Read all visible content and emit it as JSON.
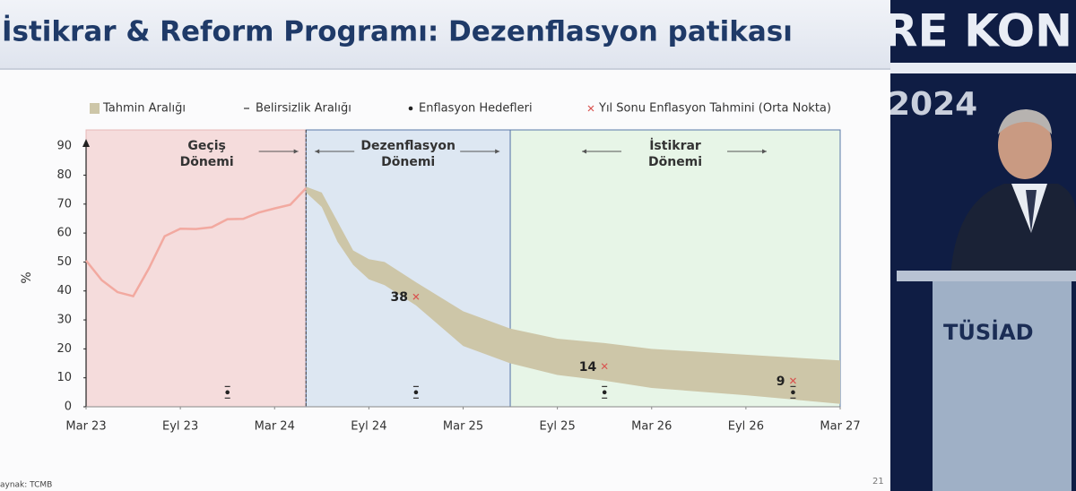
{
  "chart_data": {
    "type": "line",
    "title": "İstikrar & Reform Programı: Dezenflasyon patikası",
    "ylabel": "%",
    "xlim": [
      "2023-03",
      "2027-03"
    ],
    "xticks": [
      {
        "value": "2023-03",
        "label": "Mar 23"
      },
      {
        "value": "2023-09",
        "label": "Eyl 23"
      },
      {
        "value": "2024-03",
        "label": "Mar 24"
      },
      {
        "value": "2024-09",
        "label": "Eyl 24"
      },
      {
        "value": "2025-03",
        "label": "Mar 25"
      },
      {
        "value": "2025-09",
        "label": "Eyl 25"
      },
      {
        "value": "2026-03",
        "label": "Mar 26"
      },
      {
        "value": "2026-09",
        "label": "Eyl 26"
      },
      {
        "value": "2027-03",
        "label": "Mar 27"
      }
    ],
    "ylim": [
      0,
      95
    ],
    "yticks": [
      0,
      10,
      20,
      30,
      40,
      50,
      60,
      70,
      80,
      90
    ],
    "regions": [
      {
        "label": [
          "Geçiş",
          "Dönemi"
        ],
        "start": "2023-03",
        "end": "2024-05",
        "color": "#f5dcdc"
      },
      {
        "label": [
          "Dezenflasyon",
          "Dönemi"
        ],
        "start": "2024-05",
        "end": "2025-06",
        "color": "#dde7f2"
      },
      {
        "label": [
          "İstikrar",
          "Dönemi"
        ],
        "start": "2025-06",
        "end": "2027-03",
        "color": "#e7f5e7"
      }
    ],
    "line": {
      "color": "#f2a9a0",
      "x": [
        "2023-03",
        "2023-04",
        "2023-05",
        "2023-06",
        "2023-07",
        "2023-08",
        "2023-09",
        "2023-10",
        "2023-11",
        "2023-12",
        "2024-01",
        "2024-02",
        "2024-03",
        "2024-04",
        "2024-05"
      ],
      "values": [
        50.5,
        43.7,
        39.6,
        38.2,
        47.8,
        58.9,
        61.5,
        61.4,
        62.0,
        64.8,
        64.9,
        67.1,
        68.5,
        69.8,
        75.5
      ]
    },
    "band": {
      "name": "Tahmin Aralığı",
      "color": "#cdc6a8",
      "x": [
        "2024-05",
        "2024-06",
        "2024-07",
        "2024-08",
        "2024-09",
        "2024-10",
        "2024-12",
        "2025-03",
        "2025-06",
        "2025-09",
        "2025-12",
        "2026-03",
        "2026-09",
        "2027-03"
      ],
      "upper": [
        76,
        74,
        64,
        54,
        51,
        50,
        43,
        33,
        27,
        23.5,
        22,
        20,
        18,
        16
      ],
      "lower": [
        74,
        69,
        57,
        49,
        44,
        42,
        35,
        21,
        15,
        11,
        9,
        6.5,
        4,
        1
      ]
    },
    "uncertainty": {
      "name": "Belirsizlik Aralığı",
      "x": [
        "2023-12",
        "2024-12",
        "2025-12",
        "2026-12"
      ],
      "low": [
        3,
        3,
        3,
        3
      ],
      "high": [
        7,
        7,
        7,
        7
      ]
    },
    "targets": {
      "name": "Enflasyon Hedefleri",
      "x": [
        "2023-12",
        "2024-12",
        "2025-12",
        "2026-12"
      ],
      "values": [
        5,
        5,
        5,
        5
      ]
    },
    "estimates": {
      "name": "Yıl Sonu Enflasyon Tahmini (Orta Nokta)",
      "color": "#d9534f",
      "x": [
        "2024-12",
        "2025-12",
        "2026-12"
      ],
      "values": [
        38,
        14,
        9
      ]
    }
  },
  "slide": {
    "source": "aynak: TCMB",
    "page": "21"
  },
  "backdrop": {
    "banner": "RE KON",
    "year": "2024",
    "podium": "TÜSİAD"
  }
}
